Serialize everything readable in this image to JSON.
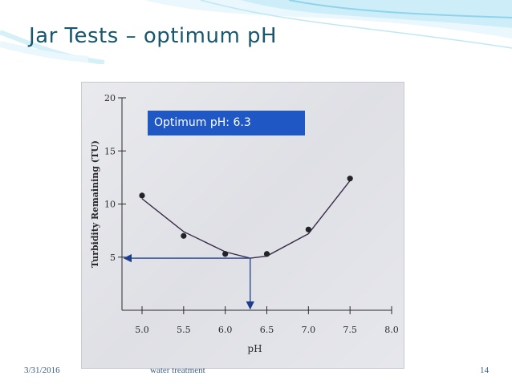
{
  "slide": {
    "title": "Jar Tests – optimum pH",
    "callout": "Optimum pH: 6.3",
    "footer": {
      "date": "3/31/2016",
      "title": "water treatment",
      "page": "14"
    },
    "colors": {
      "title": "#17586e",
      "callout_bg": "#1f57c5",
      "arrow": "#1c3f8c",
      "wave": "#8fd3ea"
    }
  },
  "chart_data": {
    "type": "scatter",
    "title": "",
    "xlabel": "pH",
    "ylabel": "Turbidity Remaining (TU)",
    "xlim": [
      5.0,
      8.0
    ],
    "ylim": [
      0,
      20
    ],
    "xticks": [
      "5.0",
      "5.5",
      "6.0",
      "6.5",
      "7.0",
      "7.5",
      "8.0"
    ],
    "yticks": [
      "5",
      "10",
      "15",
      "20"
    ],
    "series": [
      {
        "points": [
          {
            "x": 5.0,
            "y": 10.8
          },
          {
            "x": 5.5,
            "y": 7.0
          },
          {
            "x": 6.0,
            "y": 5.3
          },
          {
            "x": 6.5,
            "y": 5.3
          },
          {
            "x": 7.0,
            "y": 7.6
          },
          {
            "x": 7.5,
            "y": 12.4
          }
        ]
      }
    ],
    "fit_curve": [
      {
        "x": 5.0,
        "y": 10.5
      },
      {
        "x": 5.5,
        "y": 7.4
      },
      {
        "x": 6.0,
        "y": 5.5
      },
      {
        "x": 6.3,
        "y": 4.9
      },
      {
        "x": 6.5,
        "y": 5.1
      },
      {
        "x": 7.0,
        "y": 7.2
      },
      {
        "x": 7.5,
        "y": 12.2
      }
    ],
    "optimum": {
      "x": 6.3,
      "y": 4.9
    },
    "grid": false
  }
}
